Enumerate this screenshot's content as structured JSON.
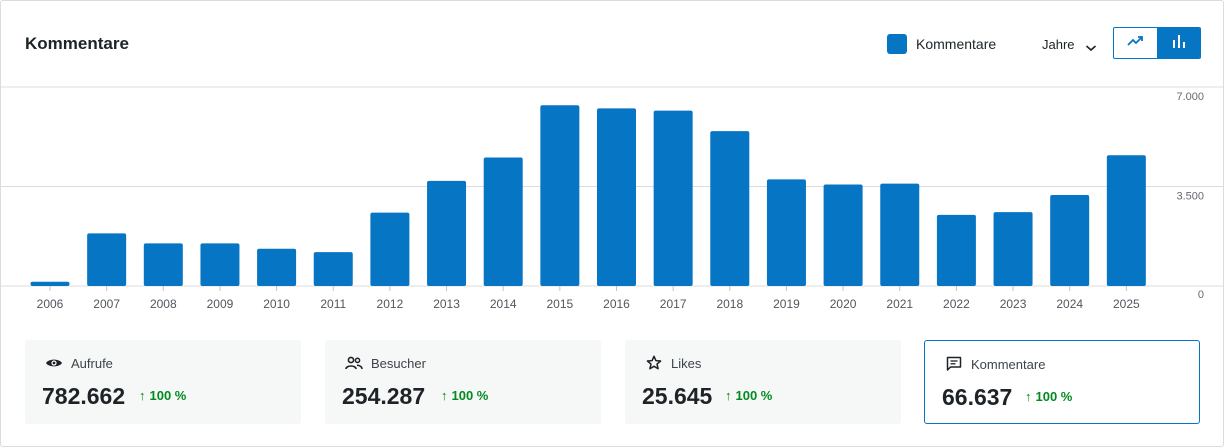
{
  "header": {
    "title": "Kommentare",
    "legend_label": "Kommentare",
    "period_label": "Jahre"
  },
  "colors": {
    "accent": "#0675c4",
    "positive": "#008a20",
    "grid": "#dcdcde"
  },
  "chart_data": {
    "type": "bar",
    "categories": [
      "2006",
      "2007",
      "2008",
      "2009",
      "2010",
      "2011",
      "2012",
      "2013",
      "2014",
      "2015",
      "2016",
      "2017",
      "2018",
      "2019",
      "2020",
      "2021",
      "2022",
      "2023",
      "2024",
      "2025"
    ],
    "series": [
      {
        "name": "Kommentare",
        "values": [
          150,
          1850,
          1500,
          1500,
          1310,
          1190,
          2580,
          3700,
          4520,
          6360,
          6250,
          6170,
          5450,
          3750,
          3570,
          3600,
          2500,
          2600,
          3200,
          4600
        ]
      }
    ],
    "y_ticks": [
      "7.000",
      "3.500",
      "0"
    ],
    "ylim": [
      0,
      7000
    ],
    "grid": true
  },
  "cards": [
    {
      "label": "Aufrufe",
      "value": "782.662",
      "delta": "100 %",
      "icon": "eye-icon"
    },
    {
      "label": "Besucher",
      "value": "254.287",
      "delta": "100 %",
      "icon": "people-icon"
    },
    {
      "label": "Likes",
      "value": "25.645",
      "delta": "100 %",
      "icon": "star-icon"
    },
    {
      "label": "Kommentare",
      "value": "66.637",
      "delta": "100 %",
      "icon": "comment-icon",
      "selected": true
    }
  ]
}
